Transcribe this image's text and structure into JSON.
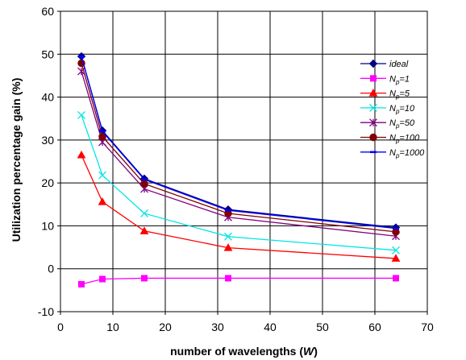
{
  "chart_data": {
    "type": "line",
    "title": "",
    "xlabel_text": "number of wavelengths",
    "xlabel_var": "W",
    "ylabel": "Utilization percentage gain (%)",
    "xlim": [
      0,
      70
    ],
    "ylim": [
      -10,
      60
    ],
    "xticks": [
      0,
      10,
      20,
      30,
      40,
      50,
      60,
      70
    ],
    "yticks": [
      -10,
      0,
      10,
      20,
      30,
      40,
      50,
      60
    ],
    "grid": true,
    "legend_position": "right",
    "x": [
      4,
      8,
      16,
      32,
      64
    ],
    "series": [
      {
        "name": "ideal",
        "label_main": "ideal",
        "label_sub": "",
        "label_tail": "",
        "color": "#000080",
        "marker": "diamond",
        "values": [
          49.5,
          32.2,
          21.0,
          13.8,
          9.6
        ]
      },
      {
        "name": "Np=1",
        "label_main": "N",
        "label_sub": "p",
        "label_tail": "=1",
        "color": "#ff00ff",
        "marker": "square",
        "values": [
          -3.6,
          -2.4,
          -2.2,
          -2.2,
          -2.2
        ]
      },
      {
        "name": "Np=5",
        "label_main": "N",
        "label_sub": "p",
        "label_tail": "=5",
        "color": "#ff0000",
        "marker": "triangle",
        "values": [
          26.5,
          15.6,
          8.8,
          4.9,
          2.4
        ]
      },
      {
        "name": "Np=10",
        "label_main": "N",
        "label_sub": "p",
        "label_tail": "=10",
        "color": "#00e5e5",
        "marker": "x",
        "values": [
          35.8,
          21.8,
          12.9,
          7.5,
          4.3
        ]
      },
      {
        "name": "Np=50",
        "label_main": "N",
        "label_sub": "p",
        "label_tail": "=50",
        "color": "#800080",
        "marker": "star",
        "values": [
          46.0,
          29.5,
          18.6,
          12.0,
          7.6
        ]
      },
      {
        "name": "Np=100",
        "label_main": "N",
        "label_sub": "p",
        "label_tail": "=100",
        "color": "#800000",
        "marker": "circle",
        "values": [
          47.9,
          30.8,
          19.8,
          12.9,
          8.6
        ]
      },
      {
        "name": "Np=1000",
        "label_main": "N",
        "label_sub": "p",
        "label_tail": "=1000",
        "color": "#0000ff",
        "marker": "dash",
        "values": [
          49.4,
          32.0,
          20.8,
          13.6,
          9.4
        ]
      }
    ]
  }
}
